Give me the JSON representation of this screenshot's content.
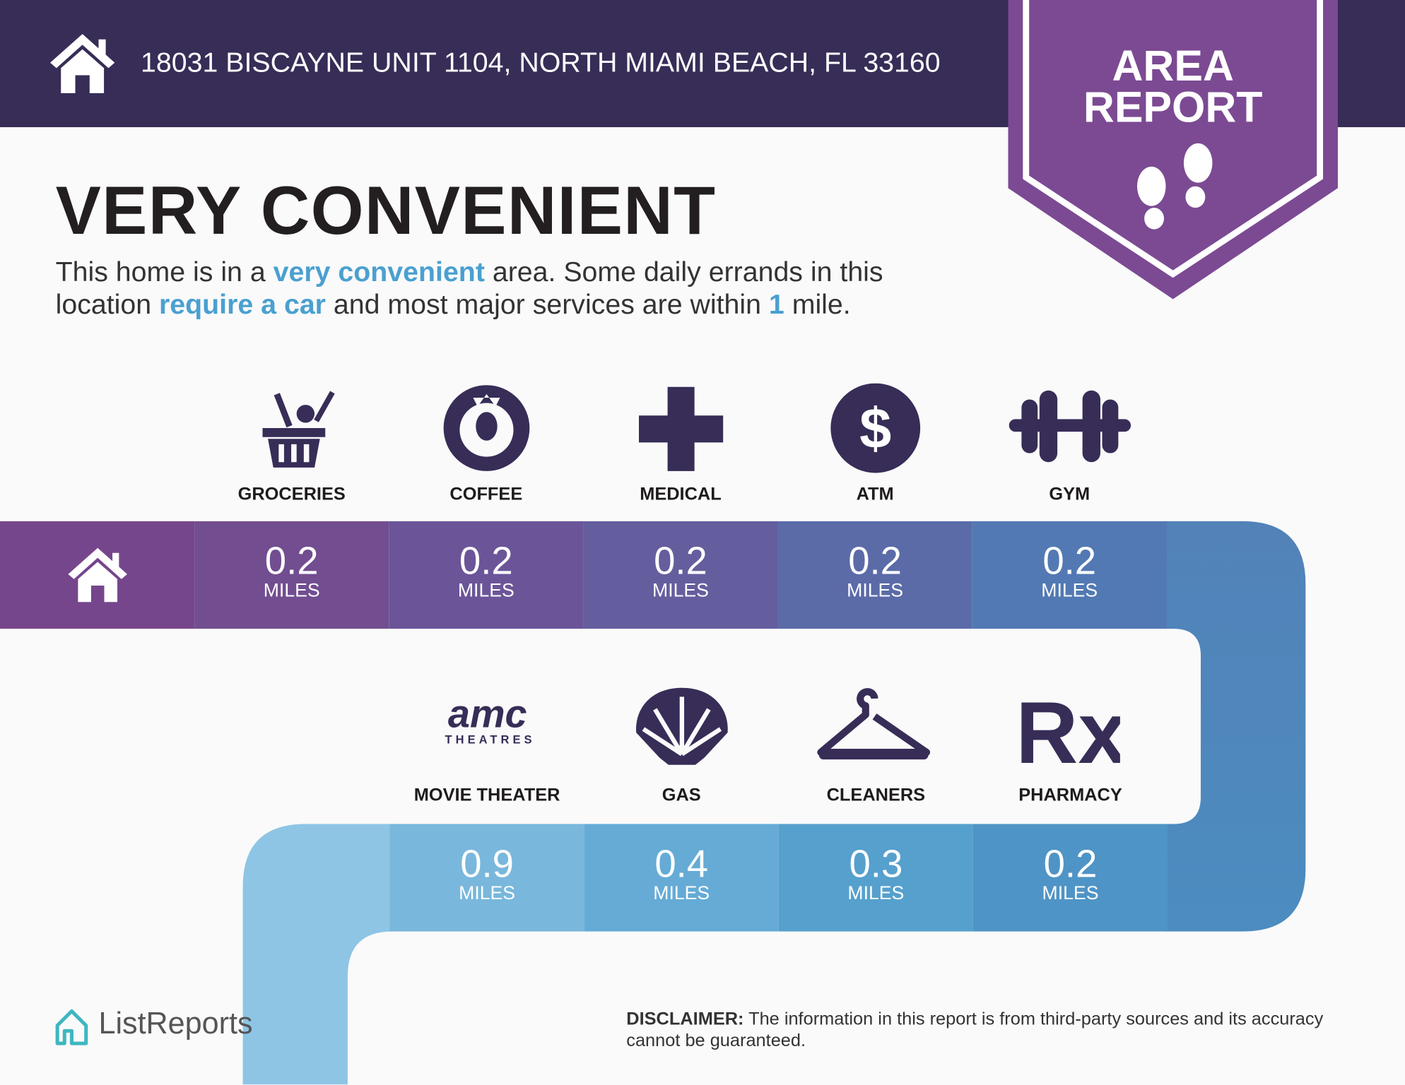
{
  "header": {
    "address": "18031 BISCAYNE UNIT 1104, NORTH MIAMI BEACH, FL 33160",
    "icon": "home-icon"
  },
  "badge": {
    "line1": "AREA",
    "line2": "REPORT",
    "icon": "footprints-icon",
    "color": "#7b4a93"
  },
  "title": "VERY CONVENIENT",
  "description": {
    "line1": [
      {
        "text": "This home is in a "
      },
      {
        "text": "very convenient",
        "highlight": true
      },
      {
        "text": " area. Some daily errands in this"
      }
    ],
    "line2": [
      {
        "text": "location "
      },
      {
        "text": "require a car",
        "highlight": true
      },
      {
        "text": " and most major services are within "
      },
      {
        "text": "1",
        "highlight": true
      },
      {
        "text": " mile."
      }
    ]
  },
  "row1": [
    {
      "name": "GROCERIES",
      "distance": "0.2",
      "unit": "MILES",
      "icon": "grocery-basket-icon"
    },
    {
      "name": "COFFEE",
      "distance": "0.2",
      "unit": "MILES",
      "icon": "starbucks-logo-icon"
    },
    {
      "name": "MEDICAL",
      "distance": "0.2",
      "unit": "MILES",
      "icon": "medical-cross-icon"
    },
    {
      "name": "ATM",
      "distance": "0.2",
      "unit": "MILES",
      "icon": "dollar-icon"
    },
    {
      "name": "GYM",
      "distance": "0.2",
      "unit": "MILES",
      "icon": "dumbbell-icon"
    }
  ],
  "row2": [
    {
      "name": "MOVIE THEATER",
      "distance": "0.9",
      "unit": "MILES",
      "icon": "amc-theatres-logo-icon",
      "logo_text": "amc",
      "logo_sub": "THEATRES"
    },
    {
      "name": "GAS",
      "distance": "0.4",
      "unit": "MILES",
      "icon": "shell-logo-icon"
    },
    {
      "name": "CLEANERS",
      "distance": "0.3",
      "unit": "MILES",
      "icon": "hanger-icon"
    },
    {
      "name": "PHARMACY",
      "distance": "0.2",
      "unit": "MILES",
      "icon": "rx-icon",
      "logo_text": "Rx"
    }
  ],
  "brand": {
    "name": "ListReports",
    "icon": "listreports-logo-icon",
    "color": "#3fb6c1"
  },
  "disclaimer": {
    "label": "DISCLAIMER:",
    "text": " The information in this report is from third-party sources and its accuracy cannot be guaranteed."
  },
  "colors": {
    "header": "#372d57",
    "highlight": "#4aa0d0",
    "row1": [
      "#76468d",
      "#724d90",
      "#6b5598",
      "#645e9e",
      "#5b6ba8",
      "#5279b3",
      "#5282b8"
    ],
    "row2": [
      "#8ec5e5",
      "#79b7dc",
      "#65abd6",
      "#56a0cd",
      "#4f94c6",
      "#4c8cc0"
    ]
  }
}
